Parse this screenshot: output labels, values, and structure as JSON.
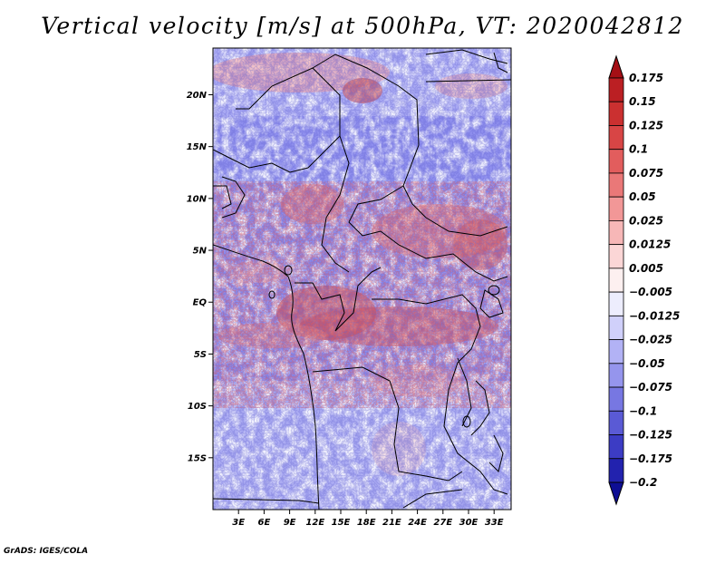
{
  "title": "Vertical velocity [m/s] at 500hPa, VT: 2020042812",
  "credit": "GrADS: IGES/COLA",
  "map": {
    "lon_range": [
      0,
      35
    ],
    "lat_range": [
      -20,
      24.5
    ],
    "lat_ticks": [
      {
        "value": 20,
        "label": "20N"
      },
      {
        "value": 15,
        "label": "15N"
      },
      {
        "value": 10,
        "label": "10N"
      },
      {
        "value": 5,
        "label": "5N"
      },
      {
        "value": 0,
        "label": "EQ"
      },
      {
        "value": -5,
        "label": "5S"
      },
      {
        "value": -10,
        "label": "10S"
      },
      {
        "value": -15,
        "label": "15S"
      }
    ],
    "lon_ticks": [
      {
        "value": 3,
        "label": "3E"
      },
      {
        "value": 6,
        "label": "6E"
      },
      {
        "value": 9,
        "label": "9E"
      },
      {
        "value": 12,
        "label": "12E"
      },
      {
        "value": 15,
        "label": "15E"
      },
      {
        "value": 18,
        "label": "18E"
      },
      {
        "value": 21,
        "label": "21E"
      },
      {
        "value": 24,
        "label": "24E"
      },
      {
        "value": 27,
        "label": "27E"
      },
      {
        "value": 30,
        "label": "30E"
      },
      {
        "value": 33,
        "label": "33E"
      }
    ]
  },
  "colorbar": {
    "labels": [
      "0.175",
      "0.15",
      "0.125",
      "0.1",
      "0.075",
      "0.05",
      "0.025",
      "0.0125",
      "0.005",
      "−0.005",
      "−0.0125",
      "−0.025",
      "−0.05",
      "−0.075",
      "−0.1",
      "−0.125",
      "−0.175",
      "−0.2"
    ],
    "colors": [
      "#a50f15",
      "#bb1f23",
      "#cb3030",
      "#d84545",
      "#e25d5d",
      "#ea7878",
      "#f29797",
      "#f7b7b7",
      "#fbd6d6",
      "#fdf0f0",
      "#ededfd",
      "#d0d0fa",
      "#b2b2f5",
      "#9595ed",
      "#7777e2",
      "#5a5ad5",
      "#3c3cc4",
      "#2222ae",
      "#0e0e94"
    ]
  }
}
